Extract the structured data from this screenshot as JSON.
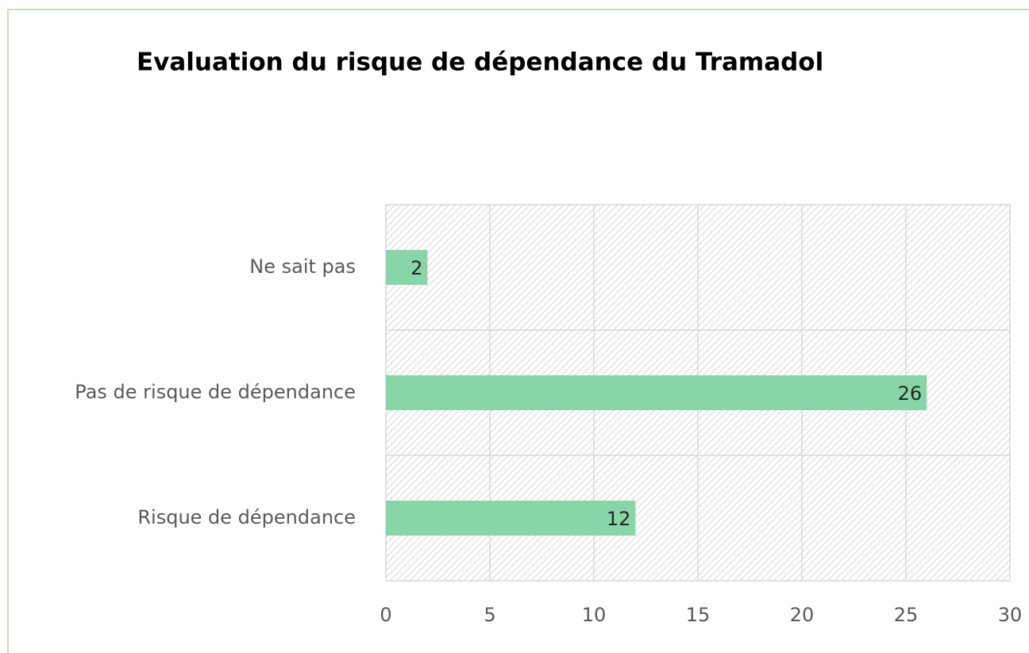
{
  "chart_data": {
    "type": "bar",
    "orientation": "horizontal",
    "title": "Evaluation du risque de dépendance du Tramadol",
    "categories": [
      "Ne sait pas",
      "Pas de risque de dépendance",
      "Risque de dépendance"
    ],
    "values": [
      2,
      26,
      12
    ],
    "color": "#88d5a8",
    "xlim": [
      0,
      30
    ],
    "xticks": [
      0,
      5,
      10,
      15,
      20,
      25,
      30
    ],
    "grid": true
  }
}
